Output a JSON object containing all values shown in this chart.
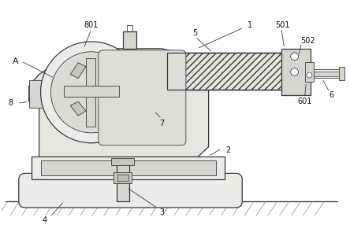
{
  "bg_color": "#ffffff",
  "line_color": "#3a3a3a",
  "fill_body": "#e8e4de",
  "fill_light": "#eeebe6",
  "fill_mid": "#d8d4ce",
  "fill_dark": "#c8c4be",
  "figsize": [
    4.44,
    3.09
  ],
  "dpi": 100
}
